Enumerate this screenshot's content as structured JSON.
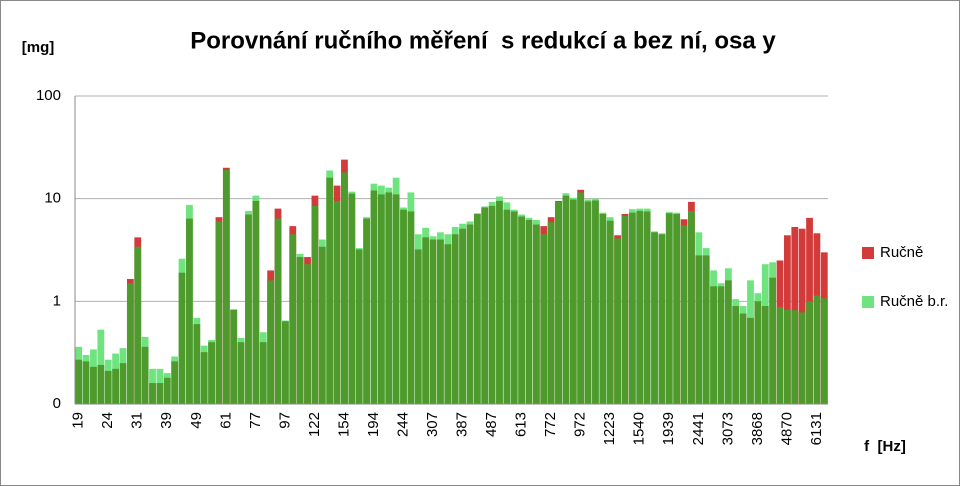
{
  "chart_data": {
    "type": "bar",
    "title": "Porovnání ručního měření  s redukcí a bez ní, osa y",
    "y_label": "[mg]",
    "x_label": "f  [Hz]",
    "log_scale": true,
    "grid": true,
    "legend": "right",
    "overlap_color": "#4e9a2c",
    "ylim": [
      0.1,
      100
    ],
    "yticks": [
      {
        "value": 0.1,
        "label": "0"
      },
      1,
      10,
      100
    ],
    "categories": [
      "19",
      null,
      null,
      null,
      "24",
      null,
      null,
      null,
      "31",
      null,
      null,
      null,
      "39",
      null,
      null,
      null,
      "49",
      null,
      null,
      null,
      "61",
      null,
      null,
      null,
      "77",
      null,
      null,
      null,
      "97",
      null,
      null,
      null,
      "122",
      null,
      null,
      null,
      "154",
      null,
      null,
      null,
      "194",
      null,
      null,
      null,
      "244",
      null,
      null,
      null,
      "307",
      null,
      null,
      null,
      "387",
      null,
      null,
      null,
      "487",
      null,
      null,
      null,
      "613",
      null,
      null,
      null,
      "772",
      null,
      null,
      null,
      "972",
      null,
      null,
      null,
      "1223",
      null,
      null,
      null,
      "1540",
      null,
      null,
      null,
      "1939",
      null,
      null,
      null,
      "2441",
      null,
      null,
      null,
      "3073",
      null,
      null,
      null,
      "3868",
      null,
      null,
      null,
      "4870",
      null,
      null,
      null,
      "6131",
      null
    ],
    "series": [
      {
        "name": "Ručně",
        "color": "#d33b3b",
        "values": [
          0.27,
          0.26,
          0.23,
          0.24,
          0.21,
          0.22,
          0.25,
          1.65,
          4.2,
          0.36,
          0.16,
          0.16,
          0.18,
          0.26,
          1.9,
          6.4,
          0.6,
          0.32,
          0.4,
          6.6,
          20,
          0.83,
          0.4,
          7,
          9.5,
          0.4,
          2.0,
          8.0,
          0.64,
          5.4,
          2.7,
          2.7,
          10.7,
          3.4,
          16,
          13.4,
          24,
          11.2,
          3.2,
          6.4,
          12,
          11,
          11.5,
          11,
          7.8,
          7.5,
          3.2,
          4.2,
          4,
          4.0,
          3.6,
          4.5,
          5.1,
          5.6,
          7.1,
          8.2,
          8.5,
          9.5,
          7.8,
          7.5,
          6.7,
          6.2,
          5.6,
          5.4,
          6.6,
          9.5,
          10.7,
          9.8,
          12.2,
          9.4,
          9.6,
          7.1,
          6.1,
          4.4,
          7.1,
          7.3,
          7.6,
          7.5,
          4.7,
          4.5,
          7.2,
          7.1,
          6.3,
          9.3,
          2.8,
          2.8,
          1.4,
          1.4,
          1.6,
          0.9,
          0.76,
          0.69,
          1.0,
          0.9,
          1.7,
          2.5,
          4.4,
          5.3,
          5.1,
          6.5,
          4.6,
          3.0
        ]
      },
      {
        "name": "Ručně b.r.",
        "color": "#6ee37e",
        "values": [
          0.36,
          0.3,
          0.34,
          0.53,
          0.27,
          0.31,
          0.35,
          1.5,
          3.4,
          0.45,
          0.22,
          0.22,
          0.2,
          0.29,
          2.6,
          8.7,
          0.69,
          0.37,
          0.42,
          6.0,
          19,
          0.83,
          0.44,
          7.6,
          10.7,
          0.5,
          1.6,
          6.4,
          0.65,
          4.5,
          2.9,
          2.3,
          8.5,
          4.0,
          18.8,
          9.5,
          18,
          11.7,
          3.3,
          6.6,
          14,
          13.4,
          12.8,
          16,
          8.2,
          11.5,
          4.5,
          5.2,
          4.3,
          4.7,
          4.5,
          5.3,
          5.7,
          6,
          7.2,
          8.4,
          9.3,
          10.5,
          9.2,
          7.8,
          7,
          6.5,
          6.2,
          4.5,
          5.9,
          9.3,
          11.3,
          10.2,
          11.5,
          9.8,
          10,
          7.3,
          6.6,
          4.1,
          6.8,
          7.9,
          8,
          8,
          4.8,
          4.6,
          7.4,
          7.3,
          5.5,
          7.6,
          4.7,
          3.3,
          2.0,
          1.5,
          2.1,
          1.05,
          0.9,
          1.6,
          1.2,
          2.3,
          2.4,
          0.88,
          0.83,
          0.82,
          0.78,
          1.0,
          1.14,
          1.07
        ]
      }
    ]
  }
}
